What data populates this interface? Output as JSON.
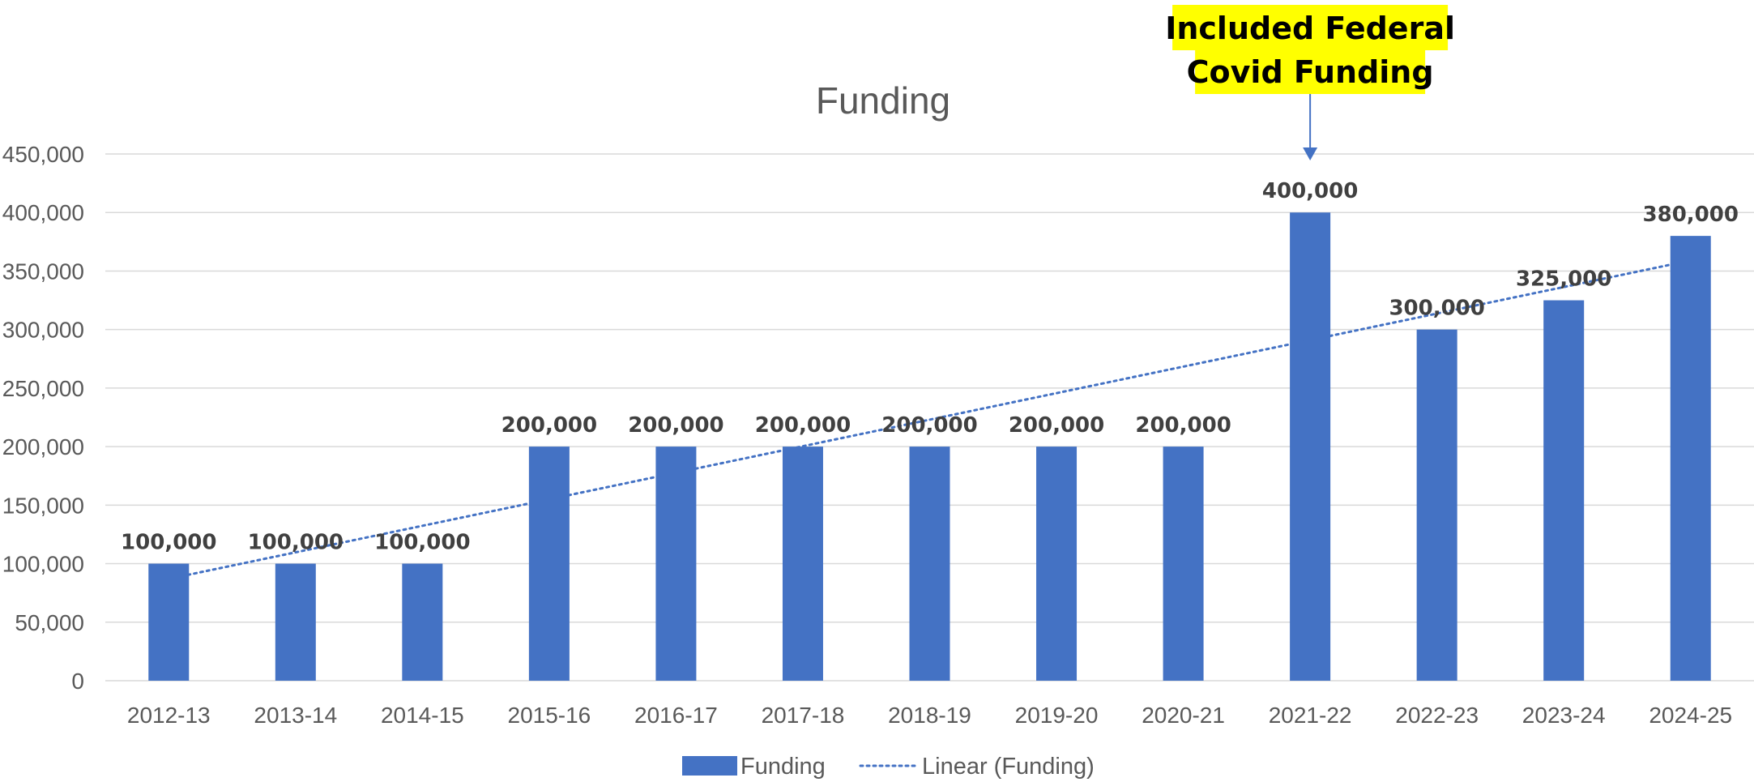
{
  "chart_data": {
    "type": "bar",
    "title": "Funding",
    "categories": [
      "2012-13",
      "2013-14",
      "2014-15",
      "2015-16",
      "2016-17",
      "2017-18",
      "2018-19",
      "2019-20",
      "2020-21",
      "2021-22",
      "2022-23",
      "2023-24",
      "2024-25"
    ],
    "series": [
      {
        "name": "Funding",
        "values": [
          100000,
          100000,
          100000,
          200000,
          200000,
          200000,
          200000,
          200000,
          200000,
          400000,
          300000,
          325000,
          380000
        ],
        "color": "#4472c4"
      }
    ],
    "data_labels": [
      "100,000",
      "100,000",
      "100,000",
      "200,000",
      "200,000",
      "200,000",
      "200,000",
      "200,000",
      "200,000",
      "400,000",
      "300,000",
      "325,000",
      "380,000"
    ],
    "trendline": {
      "name": "Linear (Funding)",
      "type": "linear",
      "style": "dotted",
      "color": "#4472c4",
      "start_value": 87000,
      "end_value": 359000
    },
    "ylim": [
      0,
      450000
    ],
    "y_ticks": [
      0,
      50000,
      100000,
      150000,
      200000,
      250000,
      300000,
      350000,
      400000,
      450000
    ],
    "y_tick_labels": [
      "0",
      "50,000",
      "100,000",
      "150,000",
      "200,000",
      "250,000",
      "300,000",
      "350,000",
      "400,000",
      "450,000"
    ],
    "xlabel": "",
    "ylabel": "",
    "grid": true,
    "legend_position": "bottom",
    "annotation": {
      "lines": [
        "Included Federal",
        "Covid Funding"
      ],
      "category": "2021-22",
      "background_color": "#ffff00",
      "arrow_color": "#4472c4"
    }
  }
}
